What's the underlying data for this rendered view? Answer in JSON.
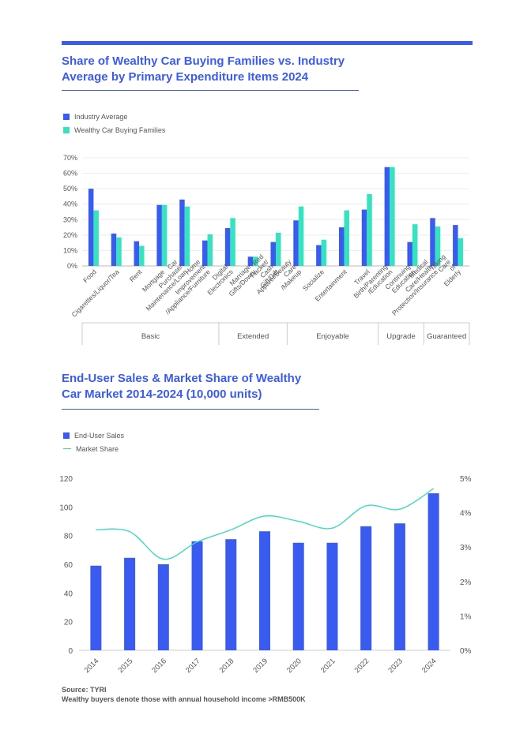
{
  "colors": {
    "accent": "#3a5bf0",
    "industry": "#3a5bf0",
    "wealthy": "#35e3c0",
    "line": "#3ddbbe"
  },
  "chart1": {
    "title_line1": "Share of Wealthy Car Buying Families vs. Industry",
    "title_line2": "Average by Primary Expenditure Items 2024"
  },
  "chart2": {
    "title_line1": "End-User Sales & Market Share of Wealthy",
    "title_line2": "Car Market 2014-2024 (10,000 units)"
  },
  "footer": {
    "source": "Source: TYRI",
    "note": "Wealthy buyers denote those with annual household income >RMB500K"
  },
  "chart_data": [
    {
      "type": "bar",
      "title": "Share of Wealthy Car Buying Families vs. Industry Average by Primary Expenditure Items 2024",
      "categories": [
        "Food",
        "Cigarettes/Liquor/Tea",
        "Rent",
        "Mortgage",
        "Car Purchase/ Maintenance/Loan",
        "Home Improvement /Appliance/Furniture",
        "Digital Electronics",
        "Marriage Gifts/Dowry",
        "Red Packet/ Cash Gift/Gift",
        "Apparel/Beauty Care /Makeup",
        "Socialize",
        "Entertainment",
        "Travel",
        "Birth/Parenting /Education",
        "Continuing Education",
        "Medical Care/Health Protection/Insurance",
        "Taking Care of Elderly"
      ],
      "groups": [
        {
          "label": "Basic",
          "start": 0,
          "end": 5
        },
        {
          "label": "Extended",
          "start": 6,
          "end": 8
        },
        {
          "label": "Enjoyable",
          "start": 9,
          "end": 12
        },
        {
          "label": "Upgrade",
          "start": 13,
          "end": 14
        },
        {
          "label": "Guaranteed",
          "start": 15,
          "end": 16
        }
      ],
      "series": [
        {
          "name": "Industry Average",
          "values": [
            50,
            21,
            16,
            39.5,
            43,
            16.5,
            24.5,
            6,
            15.5,
            29.5,
            13.5,
            25,
            36.5,
            64,
            15.5,
            31,
            26.5
          ]
        },
        {
          "name": "Wealthy Car Buying Families",
          "values": [
            36,
            18.5,
            13,
            39.5,
            38.5,
            20.5,
            31,
            6,
            21.5,
            38.5,
            17,
            36,
            46.5,
            64,
            27,
            25.5,
            18
          ]
        }
      ],
      "yticks": [
        "0%",
        "10%",
        "20%",
        "30%",
        "40%",
        "50%",
        "60%",
        "70%"
      ],
      "ylim": [
        0,
        70
      ],
      "legend_position": "top-left",
      "grid": true
    },
    {
      "type": "bar+line",
      "title": "End-User Sales & Market Share of Wealthy Car Market 2014-2024 (10,000 units)",
      "categories": [
        "2014",
        "2015",
        "2016",
        "2017",
        "2018",
        "2019",
        "2020",
        "2021",
        "2022",
        "2023",
        "2024"
      ],
      "series": [
        {
          "name": "End-User Sales",
          "type": "bar",
          "axis": "left",
          "values": [
            59,
            64.5,
            60,
            76,
            77.5,
            83,
            75,
            75,
            86.5,
            88.5,
            109.5
          ]
        },
        {
          "name": "Market Share",
          "type": "line",
          "axis": "right",
          "values": [
            3.5,
            3.45,
            2.65,
            3.15,
            3.5,
            3.9,
            3.75,
            3.55,
            4.2,
            4.1,
            4.7
          ]
        }
      ],
      "yticks_left": [
        "0",
        "20",
        "40",
        "60",
        "80",
        "100",
        "120"
      ],
      "yticks_right": [
        "0%",
        "1%",
        "2%",
        "3%",
        "4%",
        "5%"
      ],
      "ylim_left": [
        0,
        120
      ],
      "ylim_right": [
        0,
        5
      ],
      "legend_position": "top-left",
      "grid": false
    }
  ]
}
